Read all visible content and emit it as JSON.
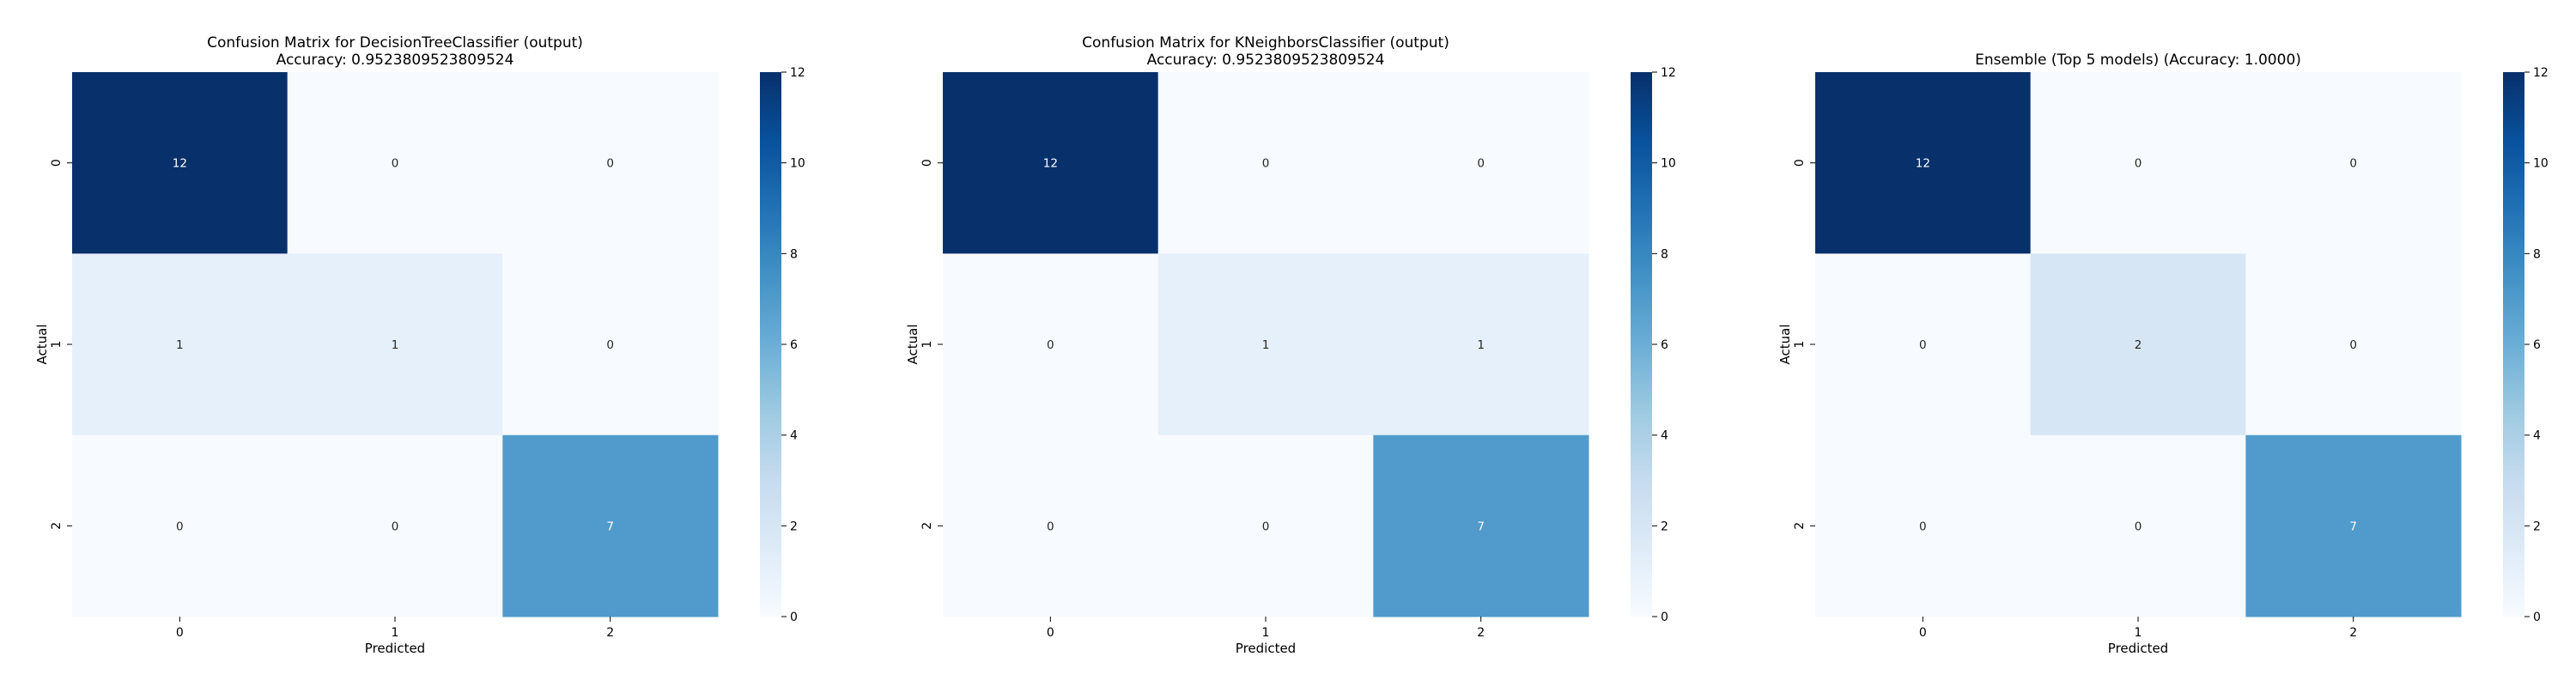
{
  "colors": {
    "cmap_low": "#f7fbff",
    "cmap_mid": "#6baed6",
    "cmap_high": "#08306b",
    "text_dark": "#262626",
    "text_light": "#ffffff"
  },
  "chart_data": [
    {
      "type": "heatmap",
      "title_line1": "Confusion Matrix for DecisionTreeClassifier (output)",
      "title_line2": "Accuracy: 0.9523809523809524",
      "xlabel": "Predicted",
      "ylabel": "Actual",
      "x_categories": [
        "0",
        "1",
        "2"
      ],
      "y_categories": [
        "0",
        "1",
        "2"
      ],
      "matrix": [
        [
          12,
          0,
          0
        ],
        [
          1,
          1,
          0
        ],
        [
          0,
          0,
          7
        ]
      ],
      "vmin": 0,
      "vmax": 12,
      "colorbar_ticks": [
        "0",
        "2",
        "4",
        "6",
        "8",
        "10",
        "12"
      ],
      "colormap": "Blues"
    },
    {
      "type": "heatmap",
      "title_line1": "Confusion Matrix for KNeighborsClassifier (output)",
      "title_line2": "Accuracy: 0.9523809523809524",
      "xlabel": "Predicted",
      "ylabel": "Actual",
      "x_categories": [
        "0",
        "1",
        "2"
      ],
      "y_categories": [
        "0",
        "1",
        "2"
      ],
      "matrix": [
        [
          12,
          0,
          0
        ],
        [
          0,
          1,
          1
        ],
        [
          0,
          0,
          7
        ]
      ],
      "vmin": 0,
      "vmax": 12,
      "colorbar_ticks": [
        "0",
        "2",
        "4",
        "6",
        "8",
        "10",
        "12"
      ],
      "colormap": "Blues"
    },
    {
      "type": "heatmap",
      "title_line1": "",
      "title_line2": "Ensemble (Top 5 models) (Accuracy: 1.0000)",
      "xlabel": "Predicted",
      "ylabel": "Actual",
      "x_categories": [
        "0",
        "1",
        "2"
      ],
      "y_categories": [
        "0",
        "1",
        "2"
      ],
      "matrix": [
        [
          12,
          0,
          0
        ],
        [
          0,
          2,
          0
        ],
        [
          0,
          0,
          7
        ]
      ],
      "vmin": 0,
      "vmax": 12,
      "colorbar_ticks": [
        "0",
        "2",
        "4",
        "6",
        "8",
        "10",
        "12"
      ],
      "colormap": "Blues"
    }
  ]
}
